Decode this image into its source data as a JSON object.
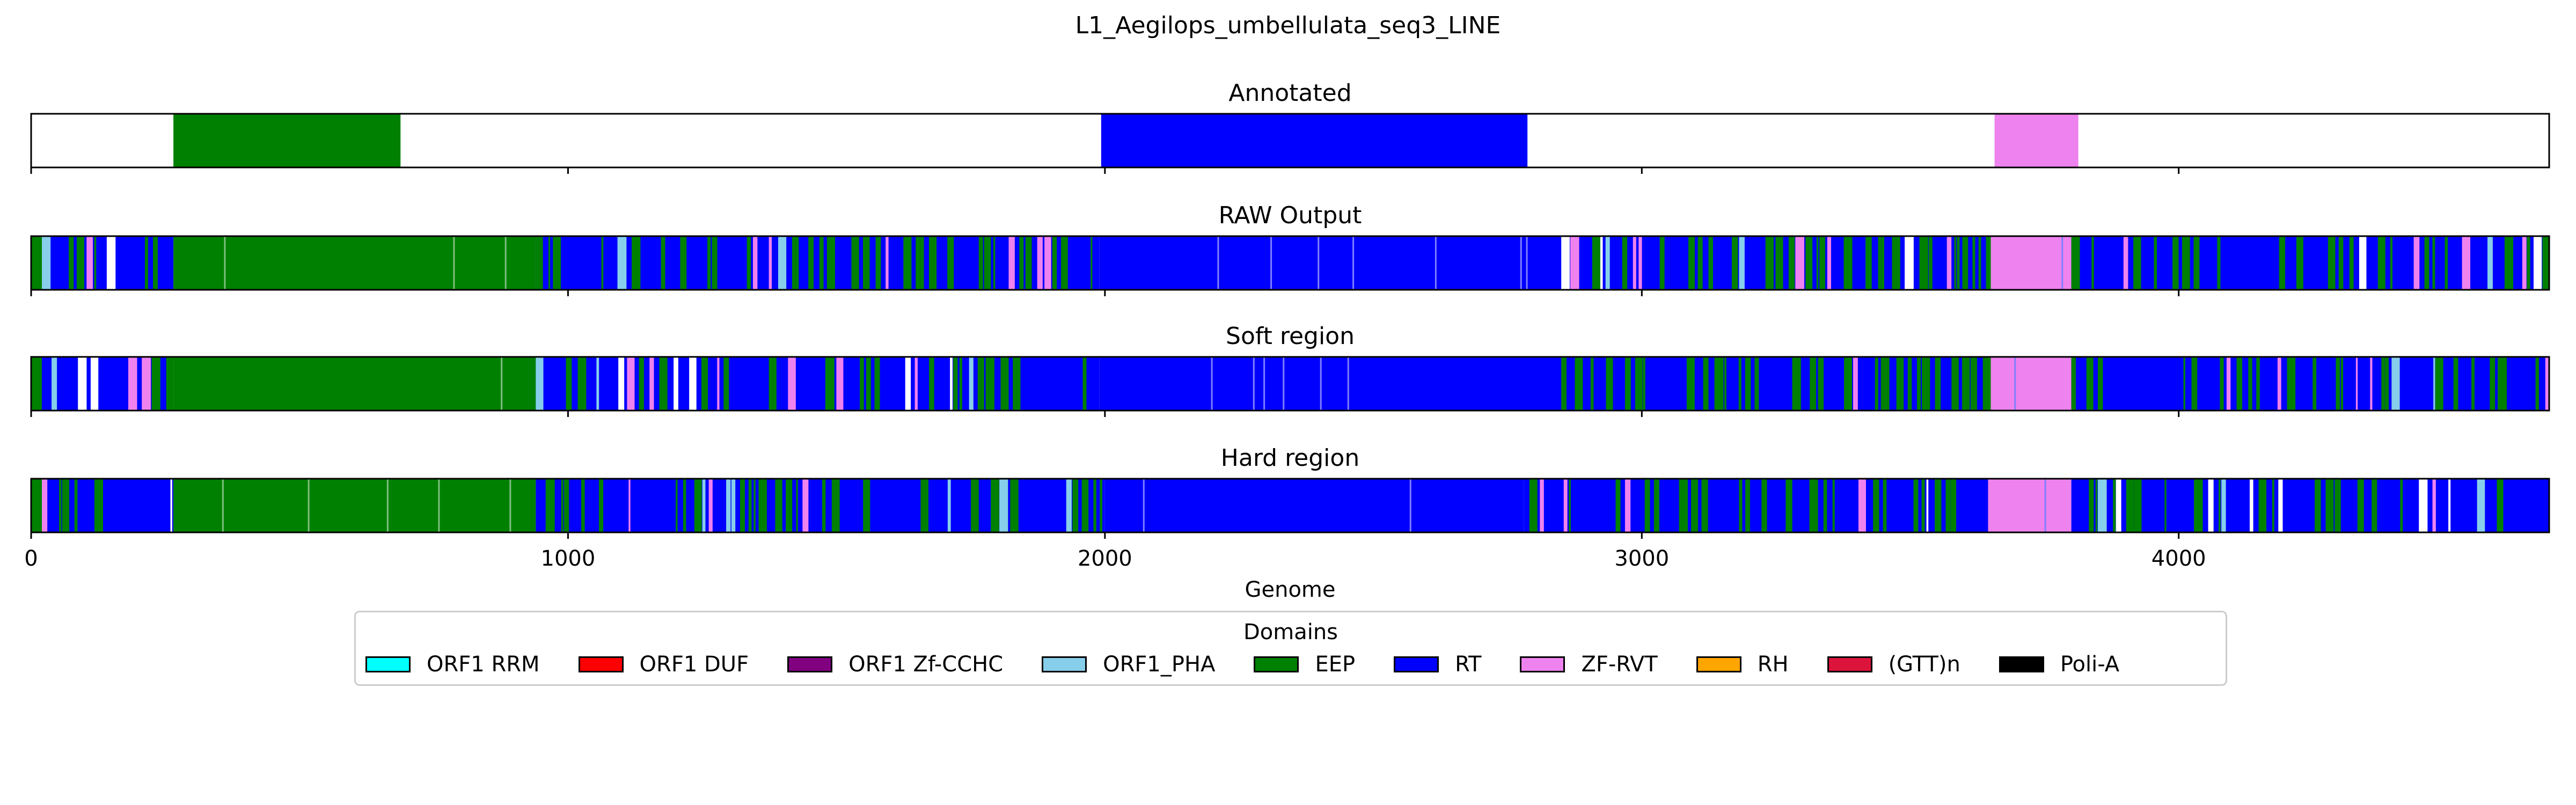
{
  "chart_data": {
    "type": "track",
    "title": "L1_Aegilops_umbellulata_seq3_LINE",
    "xlabel": "Genome",
    "xlim": [
      0,
      4690
    ],
    "xticks": [
      0,
      1000,
      2000,
      3000,
      4000
    ],
    "tracks": [
      {
        "title": "Annotated",
        "segments": [
          {
            "start": 265,
            "end": 688,
            "domain": "EEP"
          },
          {
            "start": 1993,
            "end": 2787,
            "domain": "RT"
          },
          {
            "start": 3657,
            "end": 3813,
            "domain": "ZF-RVT"
          }
        ]
      },
      {
        "title": "RAW Output",
        "segments": [
          {
            "start": 0,
            "end": 20,
            "domain": "EEP"
          },
          {
            "start": 20,
            "end": 265,
            "domain": "mixed"
          },
          {
            "start": 265,
            "end": 940,
            "domain": "EEP"
          },
          {
            "start": 940,
            "end": 1990,
            "domain": "mixed"
          },
          {
            "start": 1990,
            "end": 2850,
            "domain": "RT"
          },
          {
            "start": 2850,
            "end": 3650,
            "domain": "mixed"
          },
          {
            "start": 3650,
            "end": 3800,
            "domain": "ZF-RVT"
          },
          {
            "start": 3800,
            "end": 4690,
            "domain": "mixed"
          }
        ]
      },
      {
        "title": "Soft region",
        "segments": [
          {
            "start": 0,
            "end": 20,
            "domain": "EEP"
          },
          {
            "start": 20,
            "end": 265,
            "domain": "mixed"
          },
          {
            "start": 265,
            "end": 940,
            "domain": "EEP"
          },
          {
            "start": 940,
            "end": 1990,
            "domain": "mixed"
          },
          {
            "start": 1990,
            "end": 2850,
            "domain": "RT"
          },
          {
            "start": 2850,
            "end": 3650,
            "domain": "mixed"
          },
          {
            "start": 3650,
            "end": 3800,
            "domain": "ZF-RVT"
          },
          {
            "start": 3800,
            "end": 4690,
            "domain": "mixed"
          }
        ]
      },
      {
        "title": "Hard region",
        "segments": [
          {
            "start": 0,
            "end": 20,
            "domain": "EEP"
          },
          {
            "start": 20,
            "end": 265,
            "domain": "mixed"
          },
          {
            "start": 265,
            "end": 940,
            "domain": "EEP"
          },
          {
            "start": 940,
            "end": 2000,
            "domain": "mixed"
          },
          {
            "start": 2000,
            "end": 2780,
            "domain": "RT"
          },
          {
            "start": 2780,
            "end": 3645,
            "domain": "mixed"
          },
          {
            "start": 3645,
            "end": 3800,
            "domain": "ZF-RVT"
          },
          {
            "start": 3800,
            "end": 4690,
            "domain": "mixed"
          }
        ]
      }
    ],
    "legend": {
      "title": "Domains",
      "placement": "bottom-center",
      "items": [
        {
          "name": "ORF1 RRM",
          "color": "#00ffff"
        },
        {
          "name": "ORF1 DUF",
          "color": "#ff0000"
        },
        {
          "name": "ORF1 Zf-CCHC",
          "color": "#800080"
        },
        {
          "name": "ORF1_PHA",
          "color": "#87ceeb"
        },
        {
          "name": "EEP",
          "color": "#008000"
        },
        {
          "name": "RT",
          "color": "#0000ff"
        },
        {
          "name": "ZF-RVT",
          "color": "#ee82ee"
        },
        {
          "name": "RH",
          "color": "#ffa500"
        },
        {
          "name": "(GTT)n",
          "color": "#dc143c"
        },
        {
          "name": "Poli-A",
          "color": "#000000"
        }
      ]
    }
  }
}
